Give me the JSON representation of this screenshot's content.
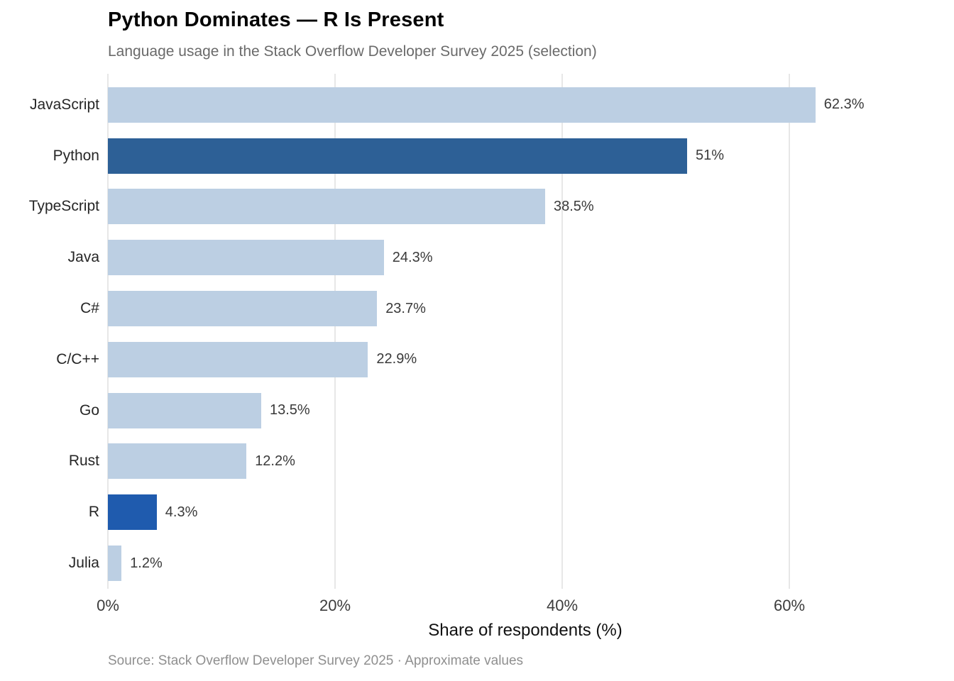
{
  "chart_data": {
    "type": "bar",
    "orientation": "horizontal",
    "title": "Python Dominates — R Is Present",
    "subtitle": "Language usage in the Stack Overflow Developer Survey 2025 (selection)",
    "xlabel": "Share of respondents (%)",
    "source": "Source: Stack Overflow Developer Survey 2025 · Approximate values",
    "categories": [
      "JavaScript",
      "Python",
      "TypeScript",
      "Java",
      "C#",
      "C/C++",
      "Go",
      "Rust",
      "R",
      "Julia"
    ],
    "values": [
      62.3,
      51,
      38.5,
      24.3,
      23.7,
      22.9,
      13.5,
      12.2,
      4.3,
      1.2
    ],
    "value_labels": [
      "62.3%",
      "51%",
      "38.5%",
      "24.3%",
      "23.7%",
      "22.9%",
      "13.5%",
      "12.2%",
      "4.3%",
      "1.2%"
    ],
    "highlighted_categories": [
      "Python",
      "R"
    ],
    "bar_colors": [
      "#bccfe3",
      "#2d6096",
      "#bccfe3",
      "#bccfe3",
      "#bccfe3",
      "#bccfe3",
      "#bccfe3",
      "#bccfe3",
      "#1f5bae",
      "#bccfe3"
    ],
    "xlim": [
      0,
      70
    ],
    "xticks": [
      0,
      20,
      40,
      60
    ],
    "xtick_labels": [
      "0%",
      "20%",
      "40%",
      "60%"
    ],
    "grid": "vertical-only",
    "legend": "none",
    "colors": {
      "default_bar": "#bccfe3",
      "python_bar": "#2d6096",
      "r_bar": "#1f5bae",
      "gridline": "#e7e7e7",
      "title_text": "#000000",
      "subtitle_text": "#6a6a6a",
      "source_text": "#8f8f8f"
    }
  }
}
